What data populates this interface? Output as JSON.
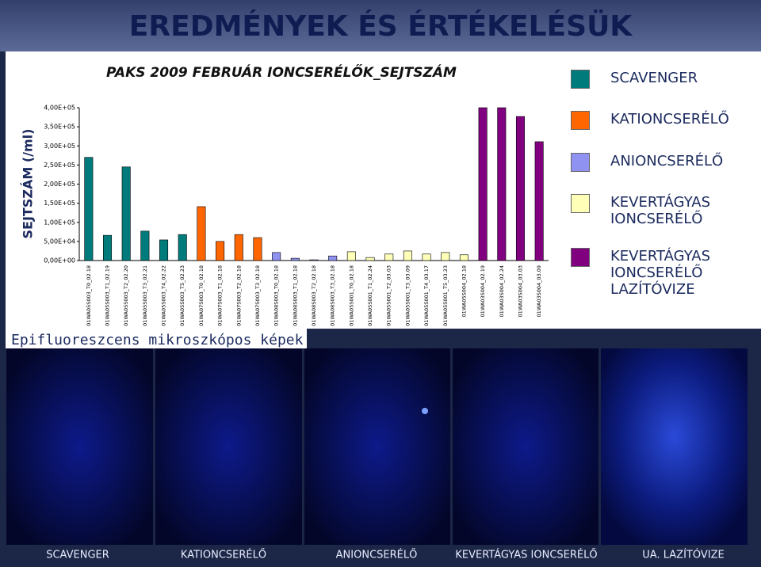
{
  "header": {
    "title": "EREDMÉNYEK ÉS ÉRTÉKELÉSÜK"
  },
  "chart_data": {
    "type": "bar",
    "title": "PAKS 2009 FEBRUÁR IONCSERÉLŐK_SEJTSZÁM",
    "y_label": "SEJTSZÁM (/ml)",
    "categories": [
      "01WA05S003_T0_02.18",
      "01WA05S003_T1_02.19",
      "01WA05S003_T2_02.20",
      "01WA05S003_T3_02.21",
      "01WA05S003_T4_02.22",
      "01WA05S003_T5_02.23",
      "01WA07S003_T0_02.18",
      "01WA07S003_T1_02.18",
      "01WA07S003_T2_02.18",
      "01WA07S003_T3_02.18",
      "01WA08S003_T0_02.18",
      "01WA08S003_T1_02.18",
      "01WA08S003_T2_02.18",
      "01WA08S003_T3_02.18",
      "01WA05S001_T0_02.18",
      "01WA05S001_T1_02.24",
      "01WA05S001_T2_03.03",
      "01WA05S001_T3_03.09",
      "01WA05S001_T4_03.17",
      "01WA05S001_T5_03.23",
      "01WA05S004_02.18",
      "01WA03S004_02.19",
      "01WA03S004_02.24",
      "01WA03S004_03.03",
      "01WA03S004_03.09"
    ],
    "series": [
      {
        "name": "SCAVENGER",
        "color": "#007b7b",
        "values": [
          270000,
          66000,
          245000,
          77000,
          54000,
          68000,
          null,
          null,
          null,
          null,
          null,
          null,
          null,
          null,
          null,
          null,
          null,
          null,
          null,
          null,
          null,
          null,
          null,
          null,
          null
        ]
      },
      {
        "name": "KATIONCSERÉLŐ",
        "color": "#ff6600",
        "values": [
          null,
          null,
          null,
          null,
          null,
          null,
          141000,
          50000,
          68000,
          60000,
          null,
          null,
          null,
          null,
          null,
          null,
          null,
          null,
          null,
          null,
          null,
          null,
          null,
          null,
          null
        ]
      },
      {
        "name": "ANIONCSERÉLŐ",
        "color": "#8f92f0",
        "values": [
          null,
          null,
          null,
          null,
          null,
          null,
          null,
          null,
          null,
          null,
          21000,
          6000,
          2000,
          12000,
          null,
          null,
          null,
          null,
          null,
          null,
          null,
          null,
          null,
          null,
          null
        ]
      },
      {
        "name": "KEVERTÁGYAS IONCSERÉLŐ",
        "color": "#ffffb8",
        "values": [
          null,
          null,
          null,
          null,
          null,
          null,
          null,
          null,
          null,
          null,
          null,
          null,
          null,
          null,
          23000,
          8000,
          17000,
          25000,
          17000,
          21000,
          15000,
          null,
          null,
          null,
          null
        ]
      },
      {
        "name": "KEVERTÁGYAS IONCSERÉLŐ LAZÍTÓVIZE",
        "color": "#800080",
        "values": [
          null,
          null,
          null,
          null,
          null,
          null,
          null,
          null,
          null,
          null,
          null,
          null,
          null,
          null,
          null,
          null,
          null,
          null,
          null,
          null,
          null,
          400000,
          400000,
          377000,
          311000
        ]
      }
    ],
    "ylim": [
      0,
      400000
    ],
    "yticks": [
      {
        "value": 0,
        "label": "0,00E+00"
      },
      {
        "value": 50000,
        "label": "5,00E+04"
      },
      {
        "value": 100000,
        "label": "1,00E+05"
      },
      {
        "value": 150000,
        "label": "1,50E+05"
      },
      {
        "value": 200000,
        "label": "2,00E+05"
      },
      {
        "value": 250000,
        "label": "2,50E+05"
      },
      {
        "value": 300000,
        "label": "3,00E+05"
      },
      {
        "value": 350000,
        "label": "3,50E+05"
      },
      {
        "value": 400000,
        "label": "4,00E+05"
      }
    ],
    "grid": false
  },
  "images": {
    "caption": "Epifluoreszcens mikroszkópos képek",
    "labels": [
      "SCAVENGER",
      "KATIONCSERÉLŐ",
      "ANIONCSERÉLŐ",
      "KEVERTÁGYAS IONCSERÉLŐ",
      "UA. LAZÍTÓVIZE"
    ]
  }
}
